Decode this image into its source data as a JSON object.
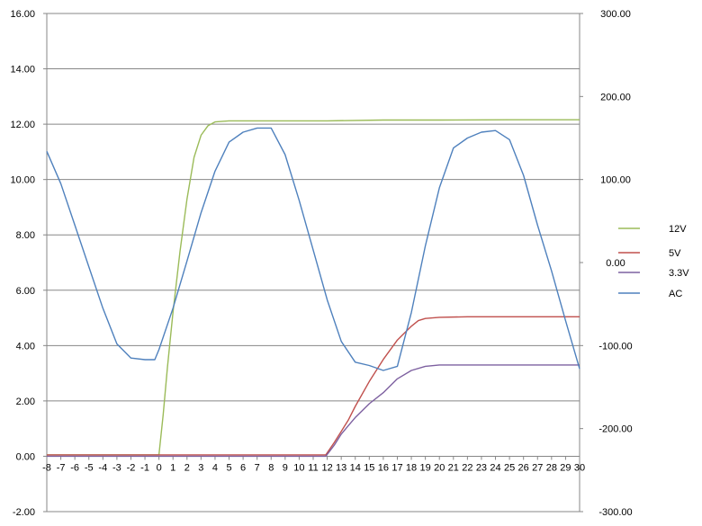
{
  "chart_data": {
    "type": "line",
    "title": "",
    "xlabel": "",
    "ylabel": "",
    "y2label": "",
    "xlim": [
      -8,
      30
    ],
    "ylim": [
      -2,
      16
    ],
    "y2lim": [
      -300,
      300
    ],
    "grid": true,
    "legend_position": "right",
    "x_ticks": [
      "-8",
      "-7",
      "-6",
      "-5",
      "-4",
      "-3",
      "-2",
      "-1",
      "0",
      "1",
      "2",
      "3",
      "4",
      "5",
      "6",
      "7",
      "8",
      "9",
      "10",
      "11",
      "12",
      "13",
      "14",
      "15",
      "16",
      "17",
      "18",
      "19",
      "20",
      "21",
      "22",
      "23",
      "24",
      "25",
      "26",
      "27",
      "28",
      "29",
      "30"
    ],
    "y_ticks": [
      "-2.00",
      "0.00",
      "2.00",
      "4.00",
      "6.00",
      "8.00",
      "10.00",
      "12.00",
      "14.00",
      "16.00"
    ],
    "y2_ticks": [
      "-300.00",
      "-200.00",
      "-100.00",
      "0.00",
      "100.00",
      "200.00",
      "300.00"
    ],
    "series": [
      {
        "name": "12V",
        "axis": "left",
        "color": "#9bbb59",
        "x": [
          -8,
          0.0,
          0.3,
          0.6,
          1.0,
          1.5,
          2.0,
          2.5,
          3.0,
          3.5,
          4.0,
          5.0,
          8.0,
          12.0,
          16.0,
          20.0,
          25.0,
          30.0
        ],
        "y": [
          0.05,
          0.05,
          1.5,
          3.2,
          5.2,
          7.4,
          9.3,
          10.8,
          11.6,
          11.95,
          12.08,
          12.12,
          12.12,
          12.12,
          12.15,
          12.15,
          12.16,
          12.16
        ]
      },
      {
        "name": "5V",
        "axis": "left",
        "color": "#c0504d",
        "x": [
          -8,
          11.9,
          12.5,
          13.0,
          13.5,
          14.0,
          15.0,
          16.0,
          17.0,
          18.0,
          18.5,
          19.0,
          20.0,
          22.0,
          25.0,
          30.0
        ],
        "y": [
          0.05,
          0.05,
          0.5,
          0.9,
          1.3,
          1.8,
          2.7,
          3.5,
          4.2,
          4.7,
          4.9,
          4.98,
          5.02,
          5.04,
          5.04,
          5.04
        ]
      },
      {
        "name": "3.3V",
        "axis": "left",
        "color": "#7d60a0",
        "x": [
          -8,
          11.9,
          12.5,
          13.0,
          13.5,
          14.0,
          15.0,
          16.0,
          17.0,
          18.0,
          19.0,
          20.0,
          25.0,
          30.0
        ],
        "y": [
          0.0,
          0.0,
          0.4,
          0.8,
          1.1,
          1.4,
          1.9,
          2.3,
          2.8,
          3.1,
          3.25,
          3.3,
          3.3,
          3.3
        ]
      },
      {
        "name": "AC",
        "axis": "right",
        "color": "#4f81bd",
        "x": [
          -8,
          -7,
          -6,
          -5,
          -4,
          -3,
          -2,
          -1,
          -0.3,
          0,
          1,
          2,
          3,
          4,
          5,
          6,
          7,
          8,
          9,
          10,
          11,
          12,
          13,
          14,
          15,
          16,
          17,
          18,
          19,
          20,
          21,
          22,
          23,
          24,
          25,
          26,
          27,
          28,
          29,
          30
        ],
        "y": [
          134,
          95,
          45,
          -5,
          -55,
          -98,
          -115,
          -117,
          -117,
          -105,
          -55,
          2,
          60,
          110,
          145,
          157,
          162,
          162,
          130,
          75,
          15,
          -45,
          -95,
          -120,
          -124,
          -130,
          -125,
          -60,
          20,
          90,
          138,
          150,
          157,
          159,
          148,
          105,
          45,
          -10,
          -70,
          -128
        ]
      }
    ]
  }
}
